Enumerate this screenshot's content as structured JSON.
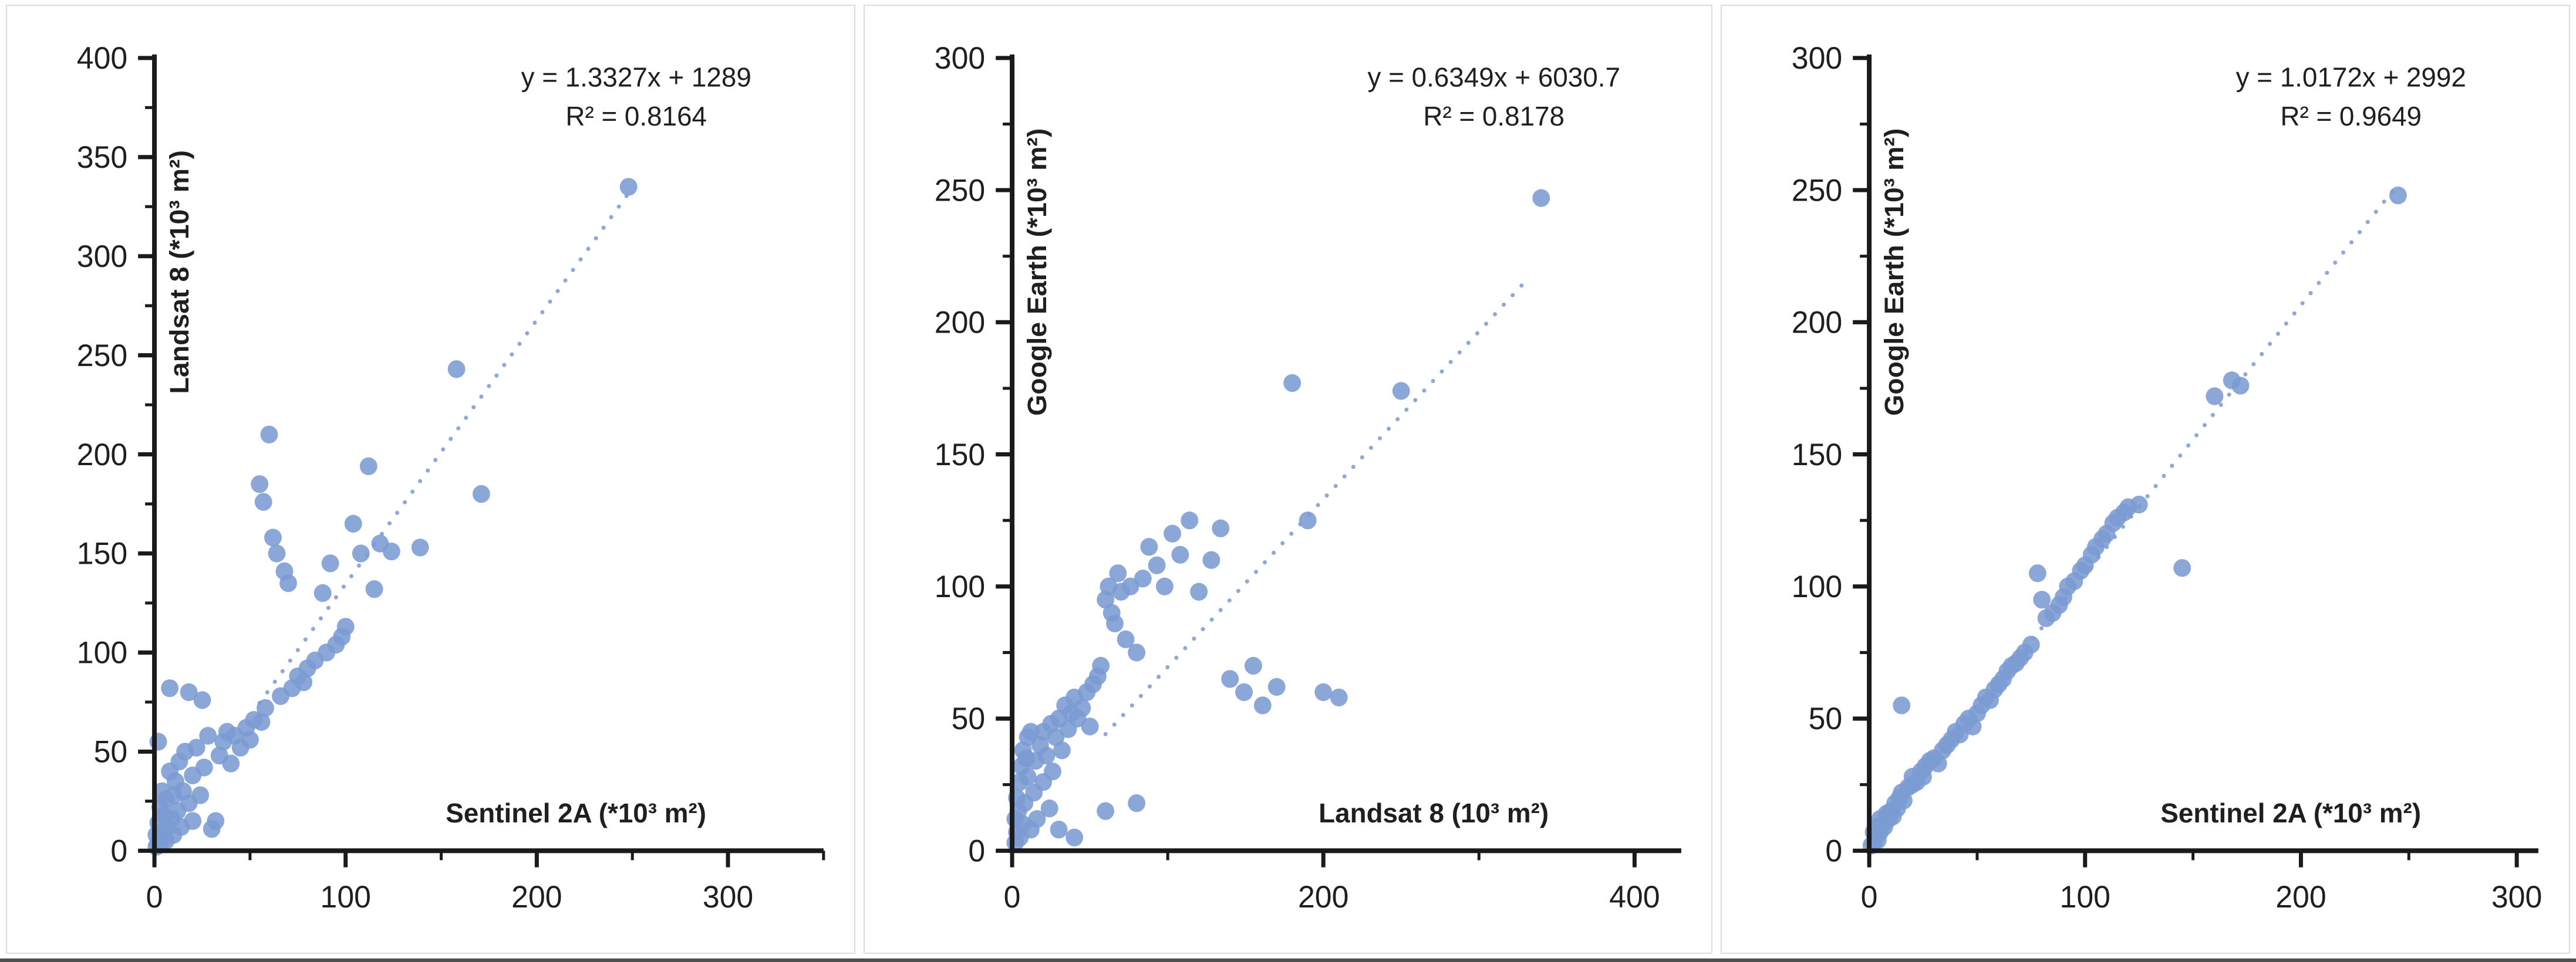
{
  "figure": {
    "point_color": "#7b9bd3",
    "trend_color": "#8fa8d8",
    "axis_color": "#1a1a1a",
    "text_color": "#1f1f1f"
  },
  "chart_data": [
    {
      "type": "scatter",
      "xlabel": "Sentinel 2A (*10³ m²)",
      "ylabel": "Landsat 8 (*10³ m²)",
      "equation": "y = 1.3327x + 1289",
      "r_squared": "R² = 0.8164",
      "xlim": [
        0,
        350
      ],
      "ylim": [
        0,
        400
      ],
      "xticks": [
        0,
        100,
        200,
        300
      ],
      "xminor": [
        50,
        150,
        250,
        350
      ],
      "yticks": [
        0,
        50,
        100,
        150,
        200,
        250,
        300,
        350,
        400
      ],
      "yminor": [
        25,
        75,
        125,
        175,
        225,
        275,
        325,
        375
      ],
      "trendline": {
        "slope": 1.3327,
        "intercept_k": 1.289,
        "x_start": 55,
        "x_end": 250
      },
      "points": [
        [
          1,
          2
        ],
        [
          1,
          8
        ],
        [
          2,
          4
        ],
        [
          2,
          14
        ],
        [
          2,
          55
        ],
        [
          3,
          3
        ],
        [
          3,
          22
        ],
        [
          4,
          6
        ],
        [
          4,
          30
        ],
        [
          5,
          10
        ],
        [
          5,
          18
        ],
        [
          6,
          5
        ],
        [
          6,
          26
        ],
        [
          7,
          12
        ],
        [
          8,
          40
        ],
        [
          8,
          82
        ],
        [
          9,
          16
        ],
        [
          10,
          8
        ],
        [
          10,
          28
        ],
        [
          11,
          35
        ],
        [
          12,
          20
        ],
        [
          13,
          45
        ],
        [
          14,
          12
        ],
        [
          15,
          30
        ],
        [
          16,
          50
        ],
        [
          18,
          80
        ],
        [
          18,
          24
        ],
        [
          20,
          15
        ],
        [
          20,
          38
        ],
        [
          22,
          52
        ],
        [
          24,
          28
        ],
        [
          25,
          76
        ],
        [
          26,
          42
        ],
        [
          28,
          58
        ],
        [
          30,
          11
        ],
        [
          32,
          15
        ],
        [
          34,
          48
        ],
        [
          36,
          55
        ],
        [
          38,
          60
        ],
        [
          40,
          44
        ],
        [
          42,
          58
        ],
        [
          45,
          52
        ],
        [
          48,
          62
        ],
        [
          50,
          56
        ],
        [
          52,
          66
        ],
        [
          55,
          185
        ],
        [
          56,
          65
        ],
        [
          57,
          176
        ],
        [
          58,
          72
        ],
        [
          60,
          210
        ],
        [
          62,
          158
        ],
        [
          64,
          150
        ],
        [
          66,
          78
        ],
        [
          68,
          141
        ],
        [
          70,
          135
        ],
        [
          72,
          82
        ],
        [
          75,
          88
        ],
        [
          78,
          85
        ],
        [
          80,
          92
        ],
        [
          84,
          96
        ],
        [
          88,
          130
        ],
        [
          90,
          100
        ],
        [
          92,
          145
        ],
        [
          95,
          104
        ],
        [
          98,
          108
        ],
        [
          100,
          113
        ],
        [
          104,
          165
        ],
        [
          108,
          150
        ],
        [
          112,
          194
        ],
        [
          115,
          132
        ],
        [
          118,
          155
        ],
        [
          124,
          151
        ],
        [
          139,
          153
        ],
        [
          158,
          243
        ],
        [
          171,
          180
        ],
        [
          248,
          335
        ]
      ]
    },
    {
      "type": "scatter",
      "xlabel": "Landsat 8 (10³ m²)",
      "ylabel": "Google Earth (*10³ m²)",
      "equation": "y = 0.6349x + 6030.7",
      "r_squared": "R² = 0.8178",
      "xlim": [
        0,
        430
      ],
      "ylim": [
        0,
        300
      ],
      "xticks": [
        0,
        200,
        400
      ],
      "xminor": [
        100,
        300
      ],
      "yticks": [
        0,
        50,
        100,
        150,
        200,
        250,
        300
      ],
      "yminor": [
        25,
        75,
        125,
        175,
        225,
        275
      ],
      "trendline": {
        "slope": 0.6349,
        "intercept_k": 6.0307,
        "x_start": 60,
        "x_end": 330
      },
      "points": [
        [
          2,
          3
        ],
        [
          2,
          12
        ],
        [
          3,
          7
        ],
        [
          3,
          20
        ],
        [
          4,
          15
        ],
        [
          5,
          5
        ],
        [
          5,
          26
        ],
        [
          6,
          32
        ],
        [
          7,
          10
        ],
        [
          7,
          38
        ],
        [
          8,
          18
        ],
        [
          9,
          35
        ],
        [
          10,
          28
        ],
        [
          10,
          43
        ],
        [
          12,
          8
        ],
        [
          12,
          45
        ],
        [
          14,
          22
        ],
        [
          15,
          34
        ],
        [
          16,
          12
        ],
        [
          18,
          40
        ],
        [
          20,
          26
        ],
        [
          20,
          45
        ],
        [
          22,
          36
        ],
        [
          24,
          16
        ],
        [
          25,
          48
        ],
        [
          26,
          30
        ],
        [
          28,
          43
        ],
        [
          30,
          8
        ],
        [
          30,
          50
        ],
        [
          32,
          38
        ],
        [
          34,
          55
        ],
        [
          36,
          46
        ],
        [
          38,
          52
        ],
        [
          40,
          5
        ],
        [
          40,
          58
        ],
        [
          42,
          50
        ],
        [
          45,
          54
        ],
        [
          48,
          60
        ],
        [
          50,
          47
        ],
        [
          52,
          63
        ],
        [
          55,
          66
        ],
        [
          57,
          70
        ],
        [
          60,
          15
        ],
        [
          60,
          95
        ],
        [
          62,
          100
        ],
        [
          64,
          90
        ],
        [
          66,
          86
        ],
        [
          68,
          105
        ],
        [
          70,
          98
        ],
        [
          73,
          80
        ],
        [
          76,
          100
        ],
        [
          80,
          18
        ],
        [
          80,
          75
        ],
        [
          84,
          103
        ],
        [
          88,
          115
        ],
        [
          93,
          108
        ],
        [
          98,
          100
        ],
        [
          103,
          120
        ],
        [
          108,
          112
        ],
        [
          114,
          125
        ],
        [
          120,
          98
        ],
        [
          128,
          110
        ],
        [
          134,
          122
        ],
        [
          140,
          65
        ],
        [
          149,
          60
        ],
        [
          155,
          70
        ],
        [
          161,
          55
        ],
        [
          170,
          62
        ],
        [
          180,
          177
        ],
        [
          190,
          125
        ],
        [
          200,
          60
        ],
        [
          210,
          58
        ],
        [
          250,
          174
        ],
        [
          340,
          247
        ]
      ]
    },
    {
      "type": "scatter",
      "xlabel": "Sentinel 2A (*10³ m²)",
      "ylabel": "Google Earth (*10³ m²)",
      "equation": "y = 1.0172x + 2992",
      "r_squared": "R² = 0.9649",
      "xlim": [
        0,
        310
      ],
      "ylim": [
        0,
        300
      ],
      "xticks": [
        0,
        100,
        200,
        300
      ],
      "xminor": [
        50,
        150,
        250
      ],
      "yticks": [
        0,
        50,
        100,
        150,
        200,
        250,
        300
      ],
      "yminor": [
        25,
        75,
        125,
        175,
        225,
        275
      ],
      "trendline": {
        "slope": 1.0172,
        "intercept_k": 2.992,
        "x_start": 8,
        "x_end": 245
      },
      "points": [
        [
          1,
          2
        ],
        [
          2,
          3
        ],
        [
          2,
          7
        ],
        [
          3,
          5
        ],
        [
          4,
          4
        ],
        [
          4,
          9
        ],
        [
          5,
          7
        ],
        [
          5,
          12
        ],
        [
          6,
          10
        ],
        [
          7,
          9
        ],
        [
          8,
          14
        ],
        [
          9,
          12
        ],
        [
          10,
          15
        ],
        [
          11,
          13
        ],
        [
          12,
          18
        ],
        [
          13,
          16
        ],
        [
          14,
          20
        ],
        [
          15,
          22
        ],
        [
          15,
          55
        ],
        [
          16,
          19
        ],
        [
          18,
          24
        ],
        [
          20,
          25
        ],
        [
          20,
          28
        ],
        [
          22,
          26
        ],
        [
          24,
          30
        ],
        [
          25,
          28
        ],
        [
          26,
          32
        ],
        [
          28,
          34
        ],
        [
          30,
          35
        ],
        [
          32,
          33
        ],
        [
          34,
          38
        ],
        [
          36,
          40
        ],
        [
          38,
          42
        ],
        [
          40,
          45
        ],
        [
          42,
          44
        ],
        [
          44,
          48
        ],
        [
          46,
          50
        ],
        [
          48,
          47
        ],
        [
          50,
          52
        ],
        [
          52,
          55
        ],
        [
          54,
          58
        ],
        [
          56,
          57
        ],
        [
          58,
          61
        ],
        [
          60,
          63
        ],
        [
          62,
          65
        ],
        [
          64,
          68
        ],
        [
          66,
          70
        ],
        [
          68,
          71
        ],
        [
          70,
          73
        ],
        [
          72,
          75
        ],
        [
          75,
          78
        ],
        [
          78,
          105
        ],
        [
          80,
          95
        ],
        [
          82,
          88
        ],
        [
          85,
          90
        ],
        [
          88,
          93
        ],
        [
          90,
          96
        ],
        [
          92,
          100
        ],
        [
          95,
          102
        ],
        [
          98,
          106
        ],
        [
          100,
          108
        ],
        [
          103,
          112
        ],
        [
          105,
          115
        ],
        [
          108,
          118
        ],
        [
          110,
          120
        ],
        [
          113,
          124
        ],
        [
          115,
          126
        ],
        [
          118,
          128
        ],
        [
          120,
          130
        ],
        [
          125,
          131
        ],
        [
          145,
          107
        ],
        [
          160,
          172
        ],
        [
          168,
          178
        ],
        [
          172,
          176
        ],
        [
          245,
          248
        ]
      ]
    }
  ]
}
